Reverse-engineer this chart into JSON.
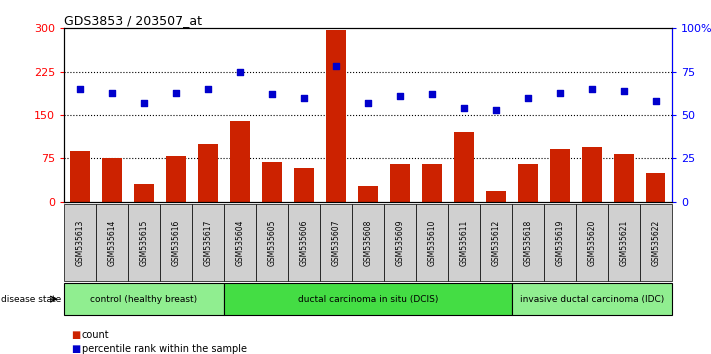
{
  "title": "GDS3853 / 203507_at",
  "samples": [
    "GSM535613",
    "GSM535614",
    "GSM535615",
    "GSM535616",
    "GSM535617",
    "GSM535604",
    "GSM535605",
    "GSM535606",
    "GSM535607",
    "GSM535608",
    "GSM535609",
    "GSM535610",
    "GSM535611",
    "GSM535612",
    "GSM535618",
    "GSM535619",
    "GSM535620",
    "GSM535621",
    "GSM535622"
  ],
  "counts": [
    88,
    75,
    30,
    80,
    100,
    140,
    68,
    58,
    297,
    28,
    65,
    65,
    120,
    18,
    65,
    92,
    95,
    82,
    50
  ],
  "percentiles": [
    65,
    63,
    57,
    63,
    65,
    75,
    62,
    60,
    78,
    57,
    61,
    62,
    54,
    53,
    60,
    63,
    65,
    64,
    58
  ],
  "bar_color": "#cc2200",
  "dot_color": "#0000cc",
  "left_ylim": [
    0,
    300
  ],
  "right_ylim": [
    0,
    100
  ],
  "left_yticks": [
    0,
    75,
    150,
    225,
    300
  ],
  "right_yticks": [
    0,
    25,
    50,
    75,
    100
  ],
  "right_yticklabels": [
    "0",
    "25",
    "50",
    "75",
    "100%"
  ],
  "hlines": [
    75,
    150,
    225
  ],
  "groups": [
    {
      "label": "control (healthy breast)",
      "start": 0,
      "end": 5,
      "color": "#90ee90"
    },
    {
      "label": "ductal carcinoma in situ (DCIS)",
      "start": 5,
      "end": 14,
      "color": "#44dd44"
    },
    {
      "label": "invasive ductal carcinoma (IDC)",
      "start": 14,
      "end": 19,
      "color": "#90ee90"
    }
  ],
  "disease_state_label": "disease state",
  "legend_count_label": "count",
  "legend_percentile_label": "percentile rank within the sample",
  "sample_cell_color": "#d0d0d0",
  "plot_bg_color": "#ffffff"
}
